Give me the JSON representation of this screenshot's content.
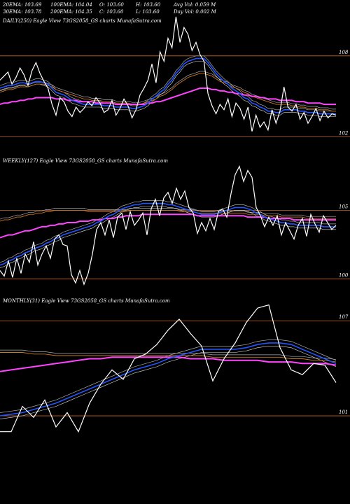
{
  "header": {
    "row1": [
      "20EMA: 103.69",
      "100EMA: 104.04",
      "O: 103.60",
      "H: 103.60",
      "Avg Vol: 0.059 M"
    ],
    "row2": [
      "30EMA: 103.78",
      "200EMA: 104.35",
      "C: 103.60",
      "L: 103.60",
      "Day Vol: 0.002 M"
    ]
  },
  "colors": {
    "price": "#ffffff",
    "ema_fast": "#2255ff",
    "ema_slow": "#ff44ff",
    "ema_mid": "#cc7722",
    "level": "#cc6622",
    "grey": "#aaaaaa"
  },
  "chart_data": [
    {
      "type": "line",
      "title": "DAILY(250) Eagle  View  73GS2058_GS charts MunafaSutra.com",
      "level_labels": [
        "108",
        "102"
      ],
      "levels": [
        108,
        102
      ],
      "ylim": [
        101.5,
        111
      ],
      "price": [
        106.2,
        106.5,
        106.8,
        105.9,
        106.4,
        107.1,
        106.6,
        105.8,
        106.9,
        107.5,
        106.7,
        106.1,
        105.6,
        104.4,
        103.6,
        104.9,
        104.6,
        103.9,
        103.5,
        104.2,
        103.8,
        104.1,
        104.6,
        104.3,
        104.9,
        104.5,
        103.8,
        104.0,
        104.7,
        103.6,
        104.1,
        104.8,
        104.3,
        103.4,
        104.0,
        105.1,
        105.6,
        106.2,
        107.4,
        106.0,
        108.3,
        107.6,
        109.3,
        108.6,
        110.9,
        109.0,
        110.1,
        109.6,
        108.4,
        109.0,
        108.1,
        107.6,
        105.2,
        104.3,
        103.7,
        104.4,
        104.0,
        104.8,
        103.5,
        104.5,
        104.1,
        103.3,
        104.2,
        102.4,
        103.6,
        102.7,
        103.1,
        102.5,
        104.0,
        103.0,
        103.9,
        105.7,
        104.2,
        103.9,
        104.4,
        103.3,
        103.8,
        103.0,
        103.5,
        104.1,
        103.2,
        103.9,
        103.4,
        103.7,
        103.6
      ],
      "ema_fast": [
        105.6,
        105.7,
        105.8,
        105.8,
        105.9,
        106.0,
        106.0,
        105.9,
        106.0,
        106.1,
        106.1,
        106.0,
        105.9,
        105.6,
        105.3,
        105.2,
        105.1,
        104.9,
        104.7,
        104.6,
        104.5,
        104.4,
        104.4,
        104.4,
        104.4,
        104.4,
        104.3,
        104.3,
        104.3,
        104.2,
        104.2,
        104.2,
        104.2,
        104.1,
        104.1,
        104.2,
        104.3,
        104.5,
        104.8,
        105.0,
        105.3,
        105.5,
        105.9,
        106.2,
        106.7,
        107.0,
        107.4,
        107.6,
        107.7,
        107.8,
        107.8,
        107.8,
        107.5,
        107.1,
        106.7,
        106.4,
        106.1,
        105.9,
        105.6,
        105.4,
        105.2,
        104.9,
        104.8,
        104.5,
        104.4,
        104.2,
        104.1,
        103.9,
        103.9,
        103.8,
        103.8,
        104.0,
        104.0,
        104.0,
        104.0,
        103.9,
        103.9,
        103.8,
        103.8,
        103.8,
        103.7,
        103.7,
        103.7,
        103.7,
        103.7
      ],
      "ema_mid": [
        105.3,
        105.4,
        105.5,
        105.5,
        105.6,
        105.7,
        105.7,
        105.7,
        105.8,
        105.9,
        105.9,
        105.9,
        105.8,
        105.7,
        105.5,
        105.4,
        105.3,
        105.2,
        105.1,
        105.0,
        104.9,
        104.8,
        104.8,
        104.7,
        104.7,
        104.7,
        104.6,
        104.6,
        104.6,
        104.5,
        104.5,
        104.5,
        104.5,
        104.4,
        104.4,
        104.4,
        104.5,
        104.6,
        104.7,
        104.8,
        105.0,
        105.1,
        105.3,
        105.5,
        105.8,
        106.0,
        106.2,
        106.4,
        106.5,
        106.6,
        106.7,
        106.7,
        106.6,
        106.5,
        106.3,
        106.1,
        106.0,
        105.9,
        105.7,
        105.6,
        105.5,
        105.3,
        105.2,
        105.0,
        104.9,
        104.8,
        104.7,
        104.6,
        104.5,
        104.4,
        104.4,
        104.4,
        104.4,
        104.3,
        104.3,
        104.2,
        104.2,
        104.1,
        104.1,
        104.1,
        104.0,
        104.0,
        104.0,
        103.9,
        103.9
      ],
      "ema_slow": [
        104.4,
        104.5,
        104.5,
        104.6,
        104.6,
        104.7,
        104.7,
        104.8,
        104.8,
        104.9,
        104.9,
        104.9,
        104.9,
        104.9,
        104.8,
        104.8,
        104.8,
        104.7,
        104.7,
        104.7,
        104.6,
        104.6,
        104.6,
        104.6,
        104.5,
        104.5,
        104.5,
        104.5,
        104.5,
        104.4,
        104.4,
        104.4,
        104.4,
        104.4,
        104.4,
        104.4,
        104.4,
        104.5,
        104.5,
        104.6,
        104.6,
        104.7,
        104.8,
        104.9,
        105.0,
        105.1,
        105.2,
        105.3,
        105.4,
        105.5,
        105.6,
        105.6,
        105.6,
        105.5,
        105.5,
        105.4,
        105.4,
        105.3,
        105.3,
        105.2,
        105.2,
        105.1,
        105.1,
        105.0,
        105.0,
        104.9,
        104.9,
        104.8,
        104.8,
        104.8,
        104.7,
        104.7,
        104.7,
        104.7,
        104.6,
        104.6,
        104.6,
        104.5,
        104.5,
        104.5,
        104.5,
        104.4,
        104.4,
        104.4,
        104.4
      ]
    },
    {
      "type": "line",
      "title": "WEEKLY(127) Eagle  View  73GS2058_GS charts MunafaSutra.com",
      "level_labels": [
        "105",
        "100"
      ],
      "levels": [
        105,
        100
      ],
      "ylim": [
        99.3,
        109
      ],
      "price": [
        100.6,
        100.2,
        101.3,
        100.1,
        101.5,
        100.4,
        101.8,
        101.2,
        102.7,
        101.0,
        101.8,
        102.4,
        101.5,
        102.9,
        103.2,
        102.5,
        102.4,
        100.3,
        99.7,
        100.6,
        99.6,
        100.4,
        101.8,
        103.6,
        104.1,
        103.2,
        104.3,
        103.0,
        104.5,
        104.8,
        103.6,
        104.9,
        103.9,
        104.3,
        104.8,
        103.2,
        105.1,
        105.8,
        104.6,
        105.9,
        106.3,
        105.5,
        106.6,
        105.8,
        106.4,
        105.2,
        104.8,
        103.3,
        104.1,
        103.5,
        104.4,
        103.6,
        104.9,
        105.1,
        104.5,
        106.2,
        107.6,
        108.2,
        107.1,
        107.9,
        107.4,
        105.2,
        104.6,
        103.8,
        104.5,
        103.9,
        104.6,
        103.2,
        104.1,
        103.5,
        102.9,
        103.9,
        104.4,
        103.1,
        104.7,
        104.0,
        103.4,
        104.6,
        104.1,
        103.6,
        103.9
      ],
      "ema_fast": [
        101.0,
        101.1,
        101.3,
        101.4,
        101.6,
        101.7,
        101.9,
        102.0,
        102.2,
        102.3,
        102.4,
        102.6,
        102.7,
        102.9,
        103.0,
        103.2,
        103.3,
        103.4,
        103.5,
        103.6,
        103.7,
        103.8,
        103.9,
        104.1,
        104.2,
        104.4,
        104.6,
        104.7,
        104.9,
        105.1,
        105.2,
        105.3,
        105.4,
        105.4,
        105.5,
        105.5,
        105.5,
        105.5,
        105.5,
        105.5,
        105.4,
        105.4,
        105.3,
        105.2,
        105.1,
        105.0,
        104.9,
        104.8,
        104.7,
        104.7,
        104.7,
        104.7,
        104.8,
        104.9,
        105.0,
        105.1,
        105.2,
        105.2,
        105.2,
        105.1,
        105.0,
        104.8,
        104.7,
        104.5,
        104.4,
        104.3,
        104.2,
        104.1,
        104.1,
        104.0,
        104.0,
        103.9,
        103.9,
        103.9,
        103.9,
        103.9,
        103.9,
        103.8,
        103.8,
        103.8,
        103.8
      ],
      "ema_mid": [
        104.2,
        104.3,
        104.3,
        104.4,
        104.5,
        104.5,
        104.6,
        104.7,
        104.7,
        104.8,
        104.8,
        104.9,
        104.9,
        105.0,
        105.0,
        105.0,
        105.0,
        105.0,
        105.0,
        105.0,
        105.0,
        104.9,
        104.9,
        104.9,
        104.9,
        104.9,
        104.9,
        104.9,
        104.9,
        104.9,
        104.9,
        105.0,
        105.0,
        105.0,
        105.0,
        105.0,
        105.0,
        105.0,
        105.0,
        105.0,
        105.0,
        105.0,
        105.0,
        104.9,
        104.9,
        104.9,
        104.9,
        104.8,
        104.8,
        104.8,
        104.8,
        104.8,
        104.8,
        104.8,
        104.8,
        104.8,
        104.8,
        104.8,
        104.8,
        104.7,
        104.7,
        104.7,
        104.7,
        104.6,
        104.6,
        104.6,
        104.6,
        104.5,
        104.5,
        104.5,
        104.5,
        104.5,
        104.5,
        104.4,
        104.4,
        104.4,
        104.4,
        104.4,
        104.4,
        104.4,
        104.4
      ],
      "ema_slow": [
        103.0,
        103.1,
        103.2,
        103.2,
        103.3,
        103.4,
        103.5,
        103.5,
        103.6,
        103.7,
        103.8,
        103.8,
        103.9,
        103.9,
        104.0,
        104.0,
        104.1,
        104.1,
        104.1,
        104.2,
        104.2,
        104.2,
        104.3,
        104.3,
        104.3,
        104.4,
        104.4,
        104.4,
        104.5,
        104.5,
        104.6,
        104.6,
        104.6,
        104.6,
        104.7,
        104.7,
        104.7,
        104.7,
        104.7,
        104.7,
        104.7,
        104.7,
        104.7,
        104.7,
        104.7,
        104.7,
        104.7,
        104.6,
        104.6,
        104.6,
        104.6,
        104.6,
        104.6,
        104.6,
        104.6,
        104.6,
        104.6,
        104.6,
        104.6,
        104.5,
        104.5,
        104.5,
        104.5,
        104.5,
        104.4,
        104.4,
        104.4,
        104.4,
        104.4,
        104.4,
        104.3,
        104.3,
        104.3,
        104.3,
        104.3,
        104.3,
        104.3,
        104.3,
        104.3,
        104.3,
        104.3
      ]
    },
    {
      "type": "line",
      "title": "MONTHLY(31) Eagle  View  73GS2058_GS charts MunafaSutra.com",
      "level_labels": [
        "107",
        "101"
      ],
      "levels": [
        107,
        101
      ],
      "ylim": [
        99.5,
        108.6
      ],
      "price": [
        100.0,
        100.0,
        101.6,
        100.9,
        102.0,
        100.3,
        101.2,
        100.0,
        101.8,
        103.0,
        103.9,
        103.3,
        104.6,
        104.9,
        105.5,
        106.4,
        107.1,
        106.2,
        105.4,
        103.2,
        104.6,
        105.6,
        106.9,
        107.8,
        108.0,
        105.3,
        103.9,
        103.6,
        104.3,
        104.2,
        103.1
      ],
      "ema_fast": [
        101.0,
        101.1,
        101.2,
        101.4,
        101.6,
        101.8,
        102.1,
        102.4,
        102.7,
        103.0,
        103.3,
        103.6,
        103.9,
        104.1,
        104.3,
        104.6,
        104.8,
        105.0,
        105.2,
        105.2,
        105.2,
        105.2,
        105.3,
        105.5,
        105.6,
        105.6,
        105.5,
        105.2,
        104.9,
        104.6,
        104.3
      ],
      "ema_mid": [
        105.0,
        105.0,
        105.0,
        104.9,
        104.9,
        104.8,
        104.8,
        104.8,
        104.8,
        104.8,
        104.8,
        104.8,
        104.8,
        104.8,
        104.8,
        104.8,
        104.8,
        104.8,
        104.8,
        104.7,
        104.7,
        104.7,
        104.7,
        104.7,
        104.7,
        104.7,
        104.6,
        104.6,
        104.5,
        104.5,
        104.4
      ],
      "ema_slow": [
        103.8,
        103.9,
        104.0,
        104.1,
        104.2,
        104.3,
        104.4,
        104.5,
        104.6,
        104.6,
        104.7,
        104.7,
        104.7,
        104.7,
        104.7,
        104.7,
        104.7,
        104.6,
        104.6,
        104.6,
        104.5,
        104.5,
        104.5,
        104.5,
        104.4,
        104.4,
        104.4,
        104.3,
        104.3,
        104.3,
        104.2
      ]
    }
  ]
}
